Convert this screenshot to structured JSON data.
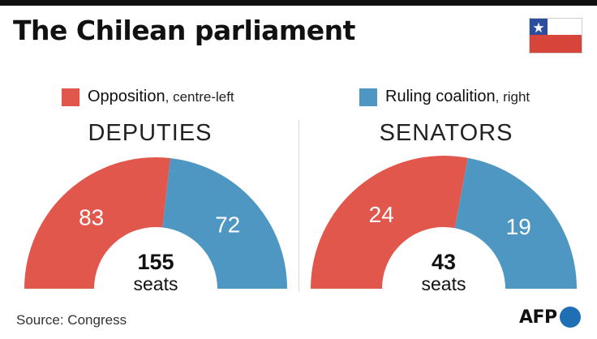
{
  "title": "The Chilean parliament",
  "colors": {
    "opposition": "#e2574c",
    "ruling": "#4f97c3",
    "flag_blue": "#2b4d9e",
    "flag_red": "#d7443a",
    "afp_blue": "#1f6fb4"
  },
  "legend": [
    {
      "label": "Opposition",
      "sub": ", centre-left",
      "color": "#e2574c"
    },
    {
      "label": "Ruling coalition",
      "sub": ", right",
      "color": "#4f97c3"
    }
  ],
  "chart_data": [
    {
      "type": "pie",
      "style": "semicircle-donut",
      "title": "DEPUTIES",
      "series": [
        {
          "name": "Opposition, centre-left",
          "value": 83,
          "color": "#e2574c"
        },
        {
          "name": "Ruling coalition, right",
          "value": 72,
          "color": "#4f97c3"
        }
      ],
      "total": 155,
      "total_unit": "seats"
    },
    {
      "type": "pie",
      "style": "semicircle-donut",
      "title": "SENATORS",
      "series": [
        {
          "name": "Opposition, centre-left",
          "value": 24,
          "color": "#e2574c"
        },
        {
          "name": "Ruling coalition, right",
          "value": 19,
          "color": "#4f97c3"
        }
      ],
      "total": 43,
      "total_unit": "seats"
    }
  ],
  "source": "Source: Congress",
  "logo_text": "AFP"
}
